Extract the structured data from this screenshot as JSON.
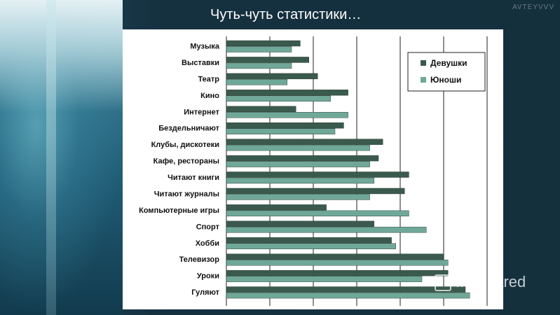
{
  "slide": {
    "title": "Чуть-чуть статистики…",
    "corner_text": "AVTEYVVV",
    "watermark": "MyShared"
  },
  "chart_data": {
    "type": "bar",
    "orientation": "horizontal",
    "categories": [
      "Музыка",
      "Выставки",
      "Театр",
      "Кино",
      "Интернет",
      "Бездельничают",
      "Клубы, дискотеки",
      "Кафе, рестораны",
      "Читают книги",
      "Читают журналы",
      "Компьютерные игры",
      "Спорт",
      "Хобби",
      "Телевизор",
      "Уроки",
      "Гуляют"
    ],
    "series": [
      {
        "name": "Девушки",
        "color": "#3a5a4d",
        "values": [
          17,
          19,
          21,
          28,
          16,
          27,
          36,
          35,
          42,
          41,
          23,
          34,
          38,
          50,
          51,
          55
        ]
      },
      {
        "name": "Юноши",
        "color": "#6fa898",
        "values": [
          15,
          15,
          14,
          24,
          28,
          25,
          33,
          33,
          34,
          33,
          42,
          46,
          39,
          51,
          45,
          56
        ]
      }
    ],
    "xlim": [
      0,
      60
    ],
    "grid": true,
    "legend_position": "top-right"
  }
}
